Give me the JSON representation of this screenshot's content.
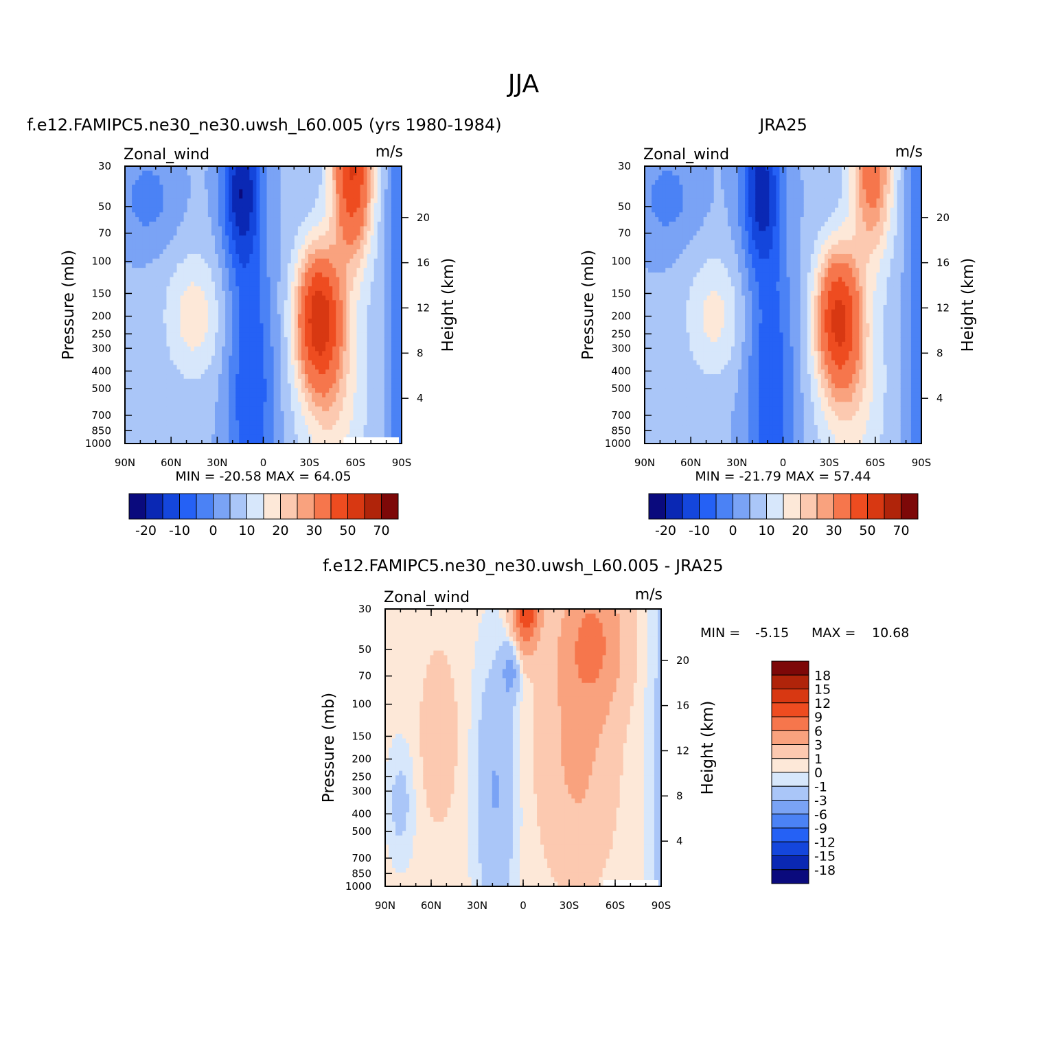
{
  "figure": {
    "title": "JJA"
  },
  "colors": {
    "full": [
      "#0a0a7d",
      "#0a28b4",
      "#1446dc",
      "#2561f5",
      "#4b82f5",
      "#7aa3f5",
      "#aac6f8",
      "#d7e7fb",
      "#fde8d8",
      "#fcc9b0",
      "#f9a27e",
      "#f6764c",
      "#ee4c20",
      "#d83812",
      "#b0240a",
      "#7d0808"
    ],
    "diff": [
      "#0a0a7d",
      "#0a28b4",
      "#1446dc",
      "#2561f5",
      "#4b82f5",
      "#7aa3f5",
      "#aac6f8",
      "#d7e7fb",
      "#fde8d8",
      "#fcc9b0",
      "#f9a27e",
      "#f6764c",
      "#ee4c20",
      "#d83812",
      "#b0240a",
      "#7d0808"
    ]
  },
  "chart_data": [
    {
      "type": "heatmap",
      "title": "f.e12.FAMIPC5.ne30_ne30.uwsh_L60.005 (yrs 1980-1984)",
      "variable": "Zonal_wind",
      "units": "m/s",
      "xlabel": "",
      "ylabel": "Pressure (mb)",
      "ylabel_right": "Height (km)",
      "x_ticks": [
        "90N",
        "60N",
        "30N",
        "0",
        "30S",
        "60S",
        "90S"
      ],
      "y_ticks": [
        "30",
        "50",
        "70",
        "100",
        "150",
        "200",
        "250",
        "300",
        "400",
        "500",
        "700",
        "850",
        "1000"
      ],
      "y_ticks_right": [
        "20",
        "16",
        "12",
        "8",
        "4"
      ],
      "min_label": "MIN =",
      "min": "-20.58",
      "max_label": "MAX =",
      "max": "64.05",
      "colorbar_labels": [
        "-20",
        "-10",
        "0",
        "10",
        "20",
        "30",
        "50",
        "70"
      ],
      "field_model": "model",
      "mask_bottom_right": true
    },
    {
      "type": "heatmap",
      "title": "JRA25",
      "variable": "Zonal_wind",
      "units": "m/s",
      "xlabel": "",
      "ylabel": "Pressure (mb)",
      "ylabel_right": "Height (km)",
      "x_ticks": [
        "90N",
        "60N",
        "30N",
        "0",
        "30S",
        "60S",
        "90S"
      ],
      "y_ticks": [
        "30",
        "50",
        "70",
        "100",
        "150",
        "200",
        "250",
        "300",
        "400",
        "500",
        "700",
        "850",
        "1000"
      ],
      "y_ticks_right": [
        "20",
        "16",
        "12",
        "8",
        "4"
      ],
      "min_label": "MIN =",
      "min": "-21.79",
      "max_label": "MAX =",
      "max": "57.44",
      "colorbar_labels": [
        "-20",
        "-10",
        "0",
        "10",
        "20",
        "30",
        "50",
        "70"
      ],
      "field_model": "obs",
      "mask_bottom_right": false
    },
    {
      "type": "heatmap",
      "title": "f.e12.FAMIPC5.ne30_ne30.uwsh_L60.005 - JRA25",
      "variable": "Zonal_wind",
      "units": "m/s",
      "xlabel": "",
      "ylabel": "Pressure (mb)",
      "ylabel_right": "Height (km)",
      "x_ticks": [
        "90N",
        "60N",
        "30N",
        "0",
        "30S",
        "60S",
        "90S"
      ],
      "y_ticks": [
        "30",
        "50",
        "70",
        "100",
        "150",
        "200",
        "250",
        "300",
        "400",
        "500",
        "700",
        "850",
        "1000"
      ],
      "y_ticks_right": [
        "20",
        "16",
        "12",
        "8",
        "4"
      ],
      "min_label": "MIN =",
      "min": "-5.15",
      "max_label": "MAX =",
      "max": "10.68",
      "colorbar_labels": [
        "18",
        "15",
        "12",
        "9",
        "6",
        "3",
        "1",
        "0",
        "-1",
        "-3",
        "-6",
        "-9",
        "-12",
        "-15",
        "-18"
      ],
      "field_model": "diff",
      "mask_bottom_right": true
    }
  ]
}
